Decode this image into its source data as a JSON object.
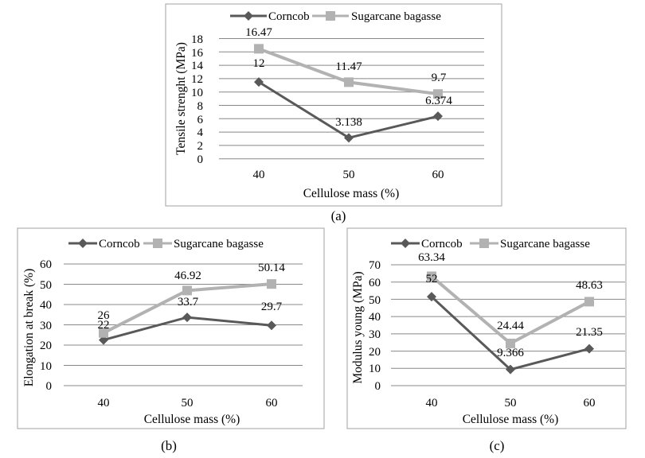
{
  "colors": {
    "corncob": "#595959",
    "sugarcane": "#b2b2b2",
    "grid": "#888888",
    "frame": "#a0a0a0"
  },
  "chart_data": [
    {
      "type": "line",
      "caption": "(a)",
      "categories": [
        "40",
        "50",
        "60"
      ],
      "xlabel": "Cellulose mass (%)",
      "ylabel": "Tensile strenght  (MPa)",
      "ylim": [
        0,
        18
      ],
      "yticks": [
        "0",
        "2",
        "4",
        "6",
        "8",
        "10",
        "12",
        "14",
        "16",
        "18"
      ],
      "grid": true,
      "legend": "top",
      "series": [
        {
          "name": "Corncob",
          "marker": "diamond",
          "values": [
            11.5,
            3.138,
            6.374
          ],
          "labels": [
            "12",
            "3.138",
            "6.374"
          ]
        },
        {
          "name": "Sugarcane bagasse",
          "marker": "square",
          "values": [
            16.47,
            11.47,
            9.7
          ],
          "labels": [
            "16.47",
            "11.47",
            "9.7"
          ]
        }
      ]
    },
    {
      "type": "line",
      "caption": "(b)",
      "categories": [
        "40",
        "50",
        "60"
      ],
      "xlabel": "Cellulose mass (%)",
      "ylabel": "Elongation at break (%)",
      "ylim": [
        0,
        60
      ],
      "yticks": [
        "0",
        "10",
        "20",
        "30",
        "40",
        "50",
        "60"
      ],
      "grid": true,
      "legend": "top",
      "series": [
        {
          "name": "Corncob",
          "marker": "diamond",
          "values": [
            22.5,
            33.7,
            29.7
          ],
          "labels": [
            "22",
            "33.7",
            "29.7"
          ]
        },
        {
          "name": "Sugarcane bagasse",
          "marker": "square",
          "values": [
            26,
            46.92,
            50.14
          ],
          "labels": [
            "26",
            "46.92",
            "50.14"
          ]
        }
      ]
    },
    {
      "type": "line",
      "caption": "(c)",
      "categories": [
        "40",
        "50",
        "60"
      ],
      "xlabel": "Cellulose mass (%)",
      "ylabel": "Modulus young (MPa)",
      "ylim": [
        0,
        70
      ],
      "yticks": [
        "0",
        "10",
        "20",
        "30",
        "40",
        "50",
        "60",
        "70"
      ],
      "grid": true,
      "legend": "top",
      "series": [
        {
          "name": "Corncob",
          "marker": "diamond",
          "values": [
            51.5,
            9.366,
            21.35
          ],
          "labels": [
            "52",
            "9.366",
            "21.35"
          ]
        },
        {
          "name": "Sugarcane bagasse",
          "marker": "square",
          "values": [
            63.34,
            24.44,
            48.63
          ],
          "labels": [
            "63.34",
            "24.44",
            "48.63"
          ]
        }
      ]
    }
  ]
}
